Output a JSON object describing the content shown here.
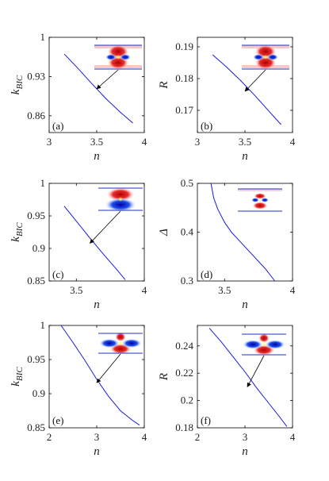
{
  "chart_data": [
    {
      "type": "line",
      "panel_label": "(a)",
      "xlabel": "n",
      "ylabel": "k_BIC",
      "xlim": [
        3,
        4
      ],
      "ylim": [
        0.83,
        1.0
      ],
      "xticks": [
        3,
        3.5,
        4
      ],
      "xtick_labels": [
        "3",
        "3.5",
        "4"
      ],
      "yticks": [
        0.86,
        0.93,
        1.0
      ],
      "ytick_labels": [
        "0.86",
        "0.93",
        "1"
      ],
      "series": [
        {
          "x": [
            3.16,
            3.3,
            3.45,
            3.6,
            3.75,
            3.88
          ],
          "y": [
            0.97,
            0.945,
            0.917,
            0.89,
            0.866,
            0.847
          ]
        }
      ],
      "annotation": {
        "x": 3.5,
        "y": 0.908
      },
      "inset": "mode-a"
    },
    {
      "type": "line",
      "panel_label": "(b)",
      "xlabel": "n",
      "ylabel": "R",
      "xlim": [
        3,
        4
      ],
      "ylim": [
        0.163,
        0.193
      ],
      "xticks": [
        3,
        3.5,
        4
      ],
      "xtick_labels": [
        "3",
        "3.5",
        "4"
      ],
      "yticks": [
        0.17,
        0.18,
        0.19
      ],
      "ytick_labels": [
        "0.17",
        "0.18",
        "0.19"
      ],
      "series": [
        {
          "x": [
            3.16,
            3.3,
            3.45,
            3.6,
            3.75,
            3.88
          ],
          "y": [
            0.1875,
            0.1838,
            0.1795,
            0.1748,
            0.1698,
            0.1655
          ]
        }
      ],
      "annotation": {
        "x": 3.5,
        "y": 0.176
      },
      "inset": "mode-a"
    },
    {
      "type": "line",
      "panel_label": "(c)",
      "xlabel": "n",
      "ylabel": "k_BIC",
      "xlim": [
        3.3,
        4
      ],
      "ylim": [
        0.85,
        1.0
      ],
      "xticks": [
        3.5,
        4
      ],
      "xtick_labels": [
        "3.5",
        "4"
      ],
      "yticks": [
        0.85,
        0.9,
        0.95,
        1.0
      ],
      "ytick_labels": [
        "0.85",
        "0.9",
        "0.95",
        "1"
      ],
      "series": [
        {
          "x": [
            3.41,
            3.5,
            3.6,
            3.7,
            3.8,
            3.86
          ],
          "y": [
            0.965,
            0.942,
            0.916,
            0.891,
            0.867,
            0.852
          ]
        }
      ],
      "annotation": {
        "x": 3.6,
        "y": 0.908
      },
      "inset": "mode-c"
    },
    {
      "type": "line",
      "panel_label": "(d)",
      "xlabel": "n",
      "ylabel": "Δ",
      "xlim": [
        3.3,
        4
      ],
      "ylim": [
        0.3,
        0.5
      ],
      "xticks": [
        3.5,
        4
      ],
      "xtick_labels": [
        "3.5",
        "4"
      ],
      "yticks": [
        0.3,
        0.4,
        0.5
      ],
      "ytick_labels": [
        "0.3",
        "0.4",
        "0.5"
      ],
      "series": [
        {
          "x": [
            3.4,
            3.42,
            3.45,
            3.5,
            3.55,
            3.6,
            3.7,
            3.8,
            3.87
          ],
          "y": [
            0.5,
            0.47,
            0.447,
            0.42,
            0.4,
            0.385,
            0.355,
            0.325,
            0.3
          ]
        }
      ],
      "inset": "mode-d"
    },
    {
      "type": "line",
      "panel_label": "(e)",
      "xlabel": "n",
      "ylabel": "k_BIC",
      "xlim": [
        2,
        4
      ],
      "ylim": [
        0.85,
        1.0
      ],
      "xticks": [
        2,
        3,
        4
      ],
      "xtick_labels": [
        "2",
        "3",
        "4"
      ],
      "yticks": [
        0.85,
        0.9,
        0.95,
        1.0
      ],
      "ytick_labels": [
        "0.85",
        "0.9",
        "0.95",
        "1"
      ],
      "series": [
        {
          "x": [
            2.25,
            2.5,
            2.75,
            3.0,
            3.25,
            3.5,
            3.75,
            3.9
          ],
          "y": [
            1.0,
            0.975,
            0.949,
            0.921,
            0.896,
            0.875,
            0.861,
            0.854
          ]
        }
      ],
      "annotation": {
        "x": 3.0,
        "y": 0.916
      },
      "inset": "mode-e"
    },
    {
      "type": "line",
      "panel_label": "(f)",
      "xlabel": "n",
      "ylabel": "R",
      "xlim": [
        2,
        4
      ],
      "ylim": [
        0.18,
        0.255
      ],
      "xticks": [
        2,
        3,
        4
      ],
      "xtick_labels": [
        "2",
        "3",
        "4"
      ],
      "yticks": [
        0.18,
        0.2,
        0.22,
        0.24
      ],
      "ytick_labels": [
        "0.18",
        "0.2",
        "0.22",
        "0.24"
      ],
      "series": [
        {
          "x": [
            2.25,
            2.5,
            2.75,
            3.0,
            3.25,
            3.5,
            3.75,
            3.88
          ],
          "y": [
            0.253,
            0.243,
            0.232,
            0.221,
            0.209,
            0.198,
            0.187,
            0.181
          ]
        }
      ],
      "annotation": {
        "x": 3.05,
        "y": 0.21
      },
      "inset": "mode-e"
    }
  ]
}
